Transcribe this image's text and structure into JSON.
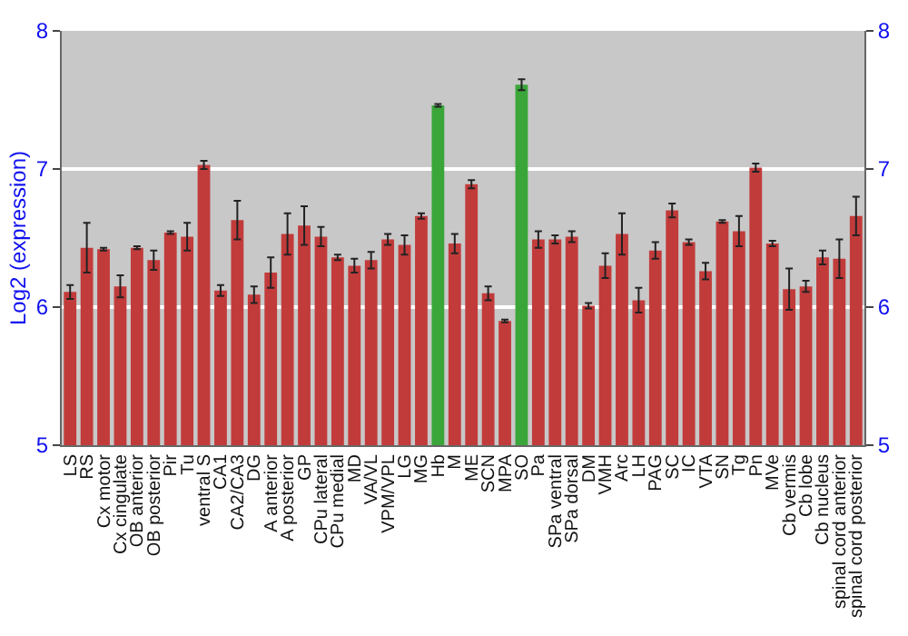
{
  "chart_data": {
    "type": "bar",
    "ylabel": "Log2 (expression)",
    "categories": [
      "LS",
      "RS",
      "Cx motor",
      "Cx cingulate",
      "OB anterior",
      "OB posterior",
      "Pir",
      "Tu",
      "ventral S",
      "CA1",
      "CA2/CA3",
      "DG",
      "A anterior",
      "A posterior",
      "GP",
      "CPu lateral",
      "CPu medial",
      "MD",
      "VA/VL",
      "VPM/VPL",
      "LG",
      "MG",
      "Hb",
      "M",
      "ME",
      "SCN",
      "MPA",
      "SO",
      "Pa",
      "SPa ventral",
      "SPa dorsal",
      "DM",
      "VMH",
      "Arc",
      "LH",
      "PAG",
      "SC",
      "IC",
      "VTA",
      "SN",
      "Tg",
      "Pn",
      "MVe",
      "Cb vermis",
      "Cb lobe",
      "Cb nucleus",
      "spinal cord anterior",
      "spinal cord posterior"
    ],
    "values": [
      6.11,
      6.43,
      6.42,
      6.15,
      6.43,
      6.34,
      6.54,
      6.51,
      7.03,
      6.12,
      6.63,
      6.09,
      6.25,
      6.53,
      6.59,
      6.51,
      6.36,
      6.3,
      6.34,
      6.49,
      6.45,
      6.66,
      7.46,
      6.46,
      6.89,
      6.1,
      5.9,
      7.61,
      6.49,
      6.49,
      6.51,
      6.01,
      6.3,
      6.53,
      6.05,
      6.41,
      6.7,
      6.47,
      6.26,
      6.62,
      6.55,
      7.01,
      6.46,
      6.13,
      6.15,
      6.36,
      6.35,
      6.66
    ],
    "errors": [
      0.05,
      0.18,
      0.01,
      0.08,
      0.01,
      0.07,
      0.01,
      0.1,
      0.03,
      0.04,
      0.14,
      0.06,
      0.11,
      0.15,
      0.14,
      0.07,
      0.02,
      0.05,
      0.06,
      0.04,
      0.07,
      0.02,
      0.01,
      0.07,
      0.03,
      0.05,
      0.01,
      0.04,
      0.06,
      0.03,
      0.04,
      0.02,
      0.09,
      0.15,
      0.09,
      0.06,
      0.05,
      0.02,
      0.06,
      0.01,
      0.11,
      0.03,
      0.02,
      0.15,
      0.04,
      0.05,
      0.14,
      0.14
    ],
    "colors": [
      "#c23b3b",
      "#c23b3b",
      "#c23b3b",
      "#c23b3b",
      "#c23b3b",
      "#c23b3b",
      "#c23b3b",
      "#c23b3b",
      "#c23b3b",
      "#c23b3b",
      "#c23b3b",
      "#c23b3b",
      "#c23b3b",
      "#c23b3b",
      "#c23b3b",
      "#c23b3b",
      "#c23b3b",
      "#c23b3b",
      "#c23b3b",
      "#c23b3b",
      "#c23b3b",
      "#c23b3b",
      "#3aa63a",
      "#c23b3b",
      "#c23b3b",
      "#c23b3b",
      "#c23b3b",
      "#3aa63a",
      "#c23b3b",
      "#c23b3b",
      "#c23b3b",
      "#c23b3b",
      "#c23b3b",
      "#c23b3b",
      "#c23b3b",
      "#c23b3b",
      "#c23b3b",
      "#c23b3b",
      "#c23b3b",
      "#c23b3b",
      "#c23b3b",
      "#c23b3b",
      "#c23b3b",
      "#c23b3b",
      "#c23b3b",
      "#c23b3b",
      "#c23b3b",
      "#c23b3b"
    ],
    "ylim": [
      5,
      8
    ],
    "yticks": [
      5,
      6,
      7,
      8
    ],
    "y2lim": [
      5,
      8
    ],
    "y2ticks": [
      5,
      6,
      7,
      8
    ],
    "grid": "y"
  }
}
